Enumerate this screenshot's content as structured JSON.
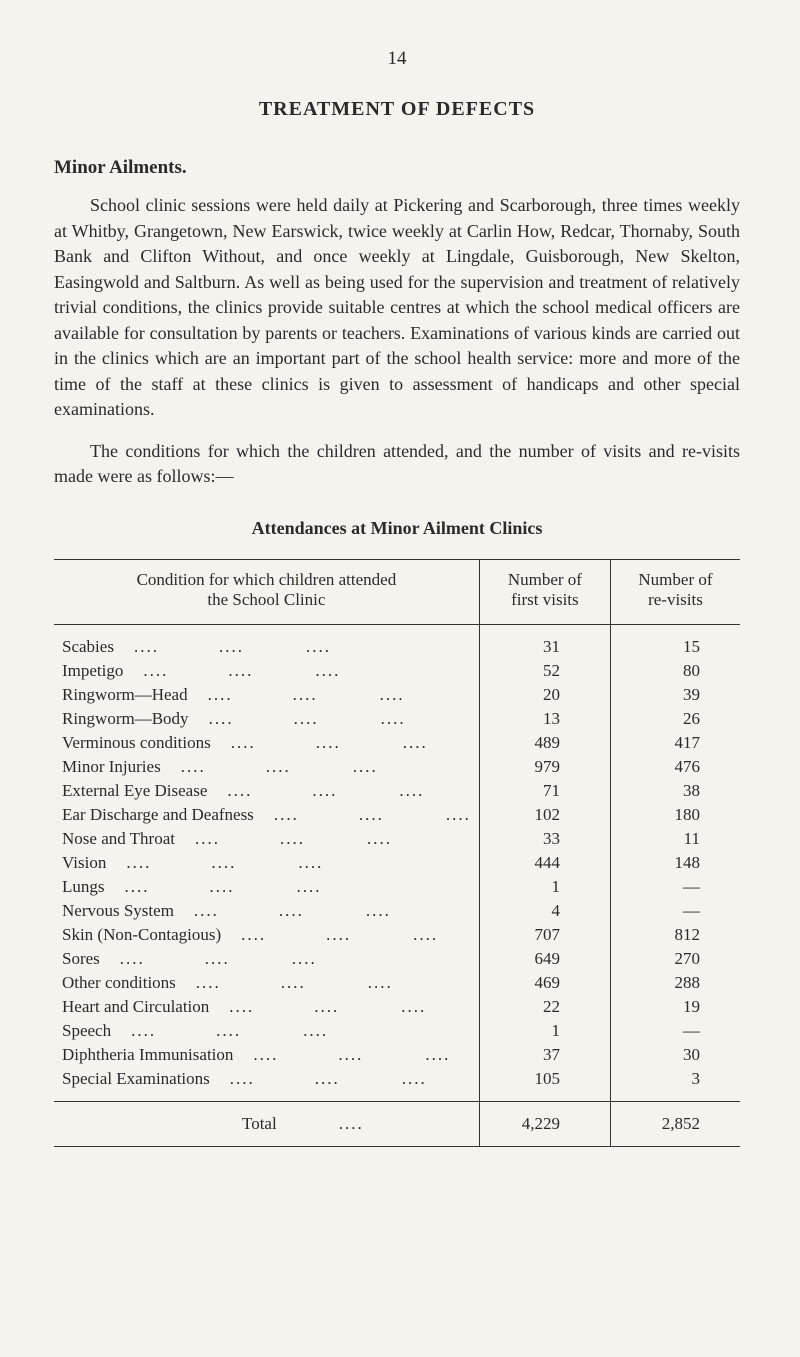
{
  "pageNumber": "14",
  "mainTitle": "TREATMENT OF DEFECTS",
  "sectionHeading": "Minor Ailments.",
  "paragraphs": [
    "School clinic sessions were held daily at Pickering and Scarborough, three times weekly at Whitby, Grangetown, New Earswick, twice weekly at Carlin How, Redcar, Thornaby, South Bank and Clifton Without, and once weekly at Lingdale, Guisborough, New Skelton, Easingwold and Saltburn. As well as being used for the supervision and treatment of relatively trivial conditions, the clinics provide suitable centres at which the school medical officers are available for consultation by parents or teachers. Examinations of various kinds are carried out in the clinics which are an important part of the school health service: more and more of the time of the staff at these clinics is given to assessment of handicaps and other special examinations.",
    "The conditions for which the children attended, and the number of visits and re-visits made were as follows:—"
  ],
  "tableTitle": "Attendances at Minor Ailment Clinics",
  "table": {
    "headers": {
      "condition": "Condition for which children attended\nthe School Clinic",
      "firstVisits": "Number of\nfirst visits",
      "reVisits": "Number of\nre-visits"
    },
    "rows": [
      {
        "cond": "Scabies",
        "first": "31",
        "re": "15"
      },
      {
        "cond": "Impetigo",
        "first": "52",
        "re": "80"
      },
      {
        "cond": "Ringworm—Head",
        "first": "20",
        "re": "39"
      },
      {
        "cond": "Ringworm—Body",
        "first": "13",
        "re": "26"
      },
      {
        "cond": "Verminous conditions",
        "first": "489",
        "re": "417"
      },
      {
        "cond": "Minor Injuries",
        "first": "979",
        "re": "476"
      },
      {
        "cond": "External Eye Disease",
        "first": "71",
        "re": "38"
      },
      {
        "cond": "Ear Discharge and Deafness",
        "first": "102",
        "re": "180"
      },
      {
        "cond": "Nose and Throat",
        "first": "33",
        "re": "11"
      },
      {
        "cond": "Vision",
        "first": "444",
        "re": "148"
      },
      {
        "cond": "Lungs",
        "first": "1",
        "re": "—"
      },
      {
        "cond": "Nervous System",
        "first": "4",
        "re": "—"
      },
      {
        "cond": "Skin (Non-Contagious)",
        "first": "707",
        "re": "812"
      },
      {
        "cond": "Sores",
        "first": "649",
        "re": "270"
      },
      {
        "cond": "Other conditions",
        "first": "469",
        "re": "288"
      },
      {
        "cond": "Heart and Circulation",
        "first": "22",
        "re": "19"
      },
      {
        "cond": "Speech",
        "first": "1",
        "re": "—"
      },
      {
        "cond": "Diphtheria Immunisation",
        "first": "37",
        "re": "30"
      },
      {
        "cond": "Special Examinations",
        "first": "105",
        "re": "3"
      }
    ],
    "total": {
      "label": "Total",
      "first": "4,229",
      "re": "2,852"
    }
  },
  "style": {
    "backgroundColor": "#f5f3ed",
    "textColor": "#2a2a2a",
    "borderColor": "#333333",
    "fontFamily": "Georgia, Times New Roman, serif",
    "baseFontSizePx": 18
  }
}
